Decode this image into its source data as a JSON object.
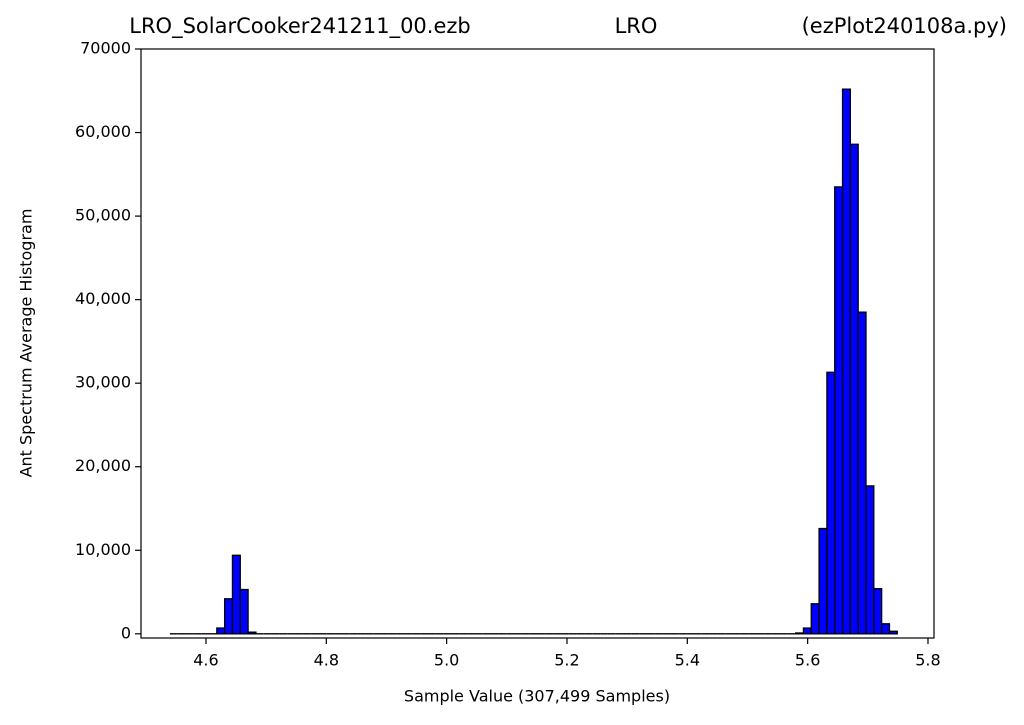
{
  "chart_data": {
    "type": "histogram",
    "title": [
      "LRO_SolarCooker241211_00.ezb",
      "LRO",
      "(ezPlot240108a.py)"
    ],
    "xlabel": "Sample Value (307,499 Samples)",
    "ylabel": "Ant Spectrum Average Histogram",
    "color": "#0000ff",
    "edgecolor": "#000000",
    "bins": [
      4.54,
      4.553,
      4.566,
      4.579,
      4.592,
      4.605,
      4.618,
      4.631,
      4.644,
      4.657,
      4.67,
      4.683,
      4.696,
      4.709,
      4.722,
      4.735,
      4.748,
      4.761,
      4.774,
      4.787,
      4.8,
      4.813,
      4.826,
      4.839,
      4.852,
      4.865,
      4.878,
      4.891,
      4.904,
      4.917,
      4.93,
      4.943,
      4.956,
      4.969,
      4.982,
      4.995,
      5.008,
      5.021,
      5.034,
      5.047,
      5.06,
      5.073,
      5.086,
      5.099,
      5.112,
      5.125,
      5.138,
      5.151,
      5.164,
      5.177,
      5.19,
      5.203,
      5.216,
      5.229,
      5.242,
      5.255,
      5.268,
      5.281,
      5.294,
      5.307,
      5.32,
      5.333,
      5.346,
      5.359,
      5.372,
      5.385,
      5.398,
      5.411,
      5.424,
      5.437,
      5.45,
      5.463,
      5.476,
      5.489,
      5.502,
      5.515,
      5.528,
      5.541,
      5.554,
      5.567,
      5.58,
      5.593,
      5.606,
      5.619,
      5.632,
      5.645,
      5.658,
      5.671,
      5.684,
      5.697,
      5.71,
      5.723,
      5.736,
      5.749
    ],
    "values": [
      0,
      0,
      0,
      0,
      0,
      0,
      700,
      4200,
      9400,
      5300,
      200,
      0,
      0,
      0,
      0,
      0,
      0,
      0,
      0,
      0,
      0,
      0,
      0,
      0,
      0,
      0,
      0,
      0,
      0,
      0,
      0,
      0,
      0,
      0,
      0,
      0,
      0,
      0,
      0,
      0,
      0,
      0,
      0,
      0,
      0,
      0,
      0,
      0,
      0,
      0,
      0,
      0,
      0,
      0,
      0,
      0,
      0,
      0,
      0,
      0,
      0,
      0,
      0,
      0,
      0,
      0,
      0,
      0,
      0,
      0,
      0,
      0,
      0,
      0,
      0,
      0,
      0,
      0,
      0,
      0,
      100,
      700,
      3600,
      12600,
      31300,
      53500,
      65200,
      58600,
      38500,
      17700,
      5400,
      1200,
      300
    ],
    "xlim": [
      4.492,
      5.81
    ],
    "xticks": [
      4.6,
      4.8,
      {
        "value": 5.0,
        "label": "5.0"
      },
      5.2,
      5.4,
      5.6,
      5.8
    ],
    "ylim": [
      -500,
      70000
    ],
    "yticks": [
      0,
      {
        "value": 10000,
        "label": "10,000"
      },
      {
        "value": 20000,
        "label": "20,000"
      },
      {
        "value": 30000,
        "label": "30,000"
      },
      {
        "value": 40000,
        "label": "40,000"
      },
      {
        "value": 50000,
        "label": "50,000"
      },
      {
        "value": 60000,
        "label": "60,000"
      },
      70000
    ]
  }
}
